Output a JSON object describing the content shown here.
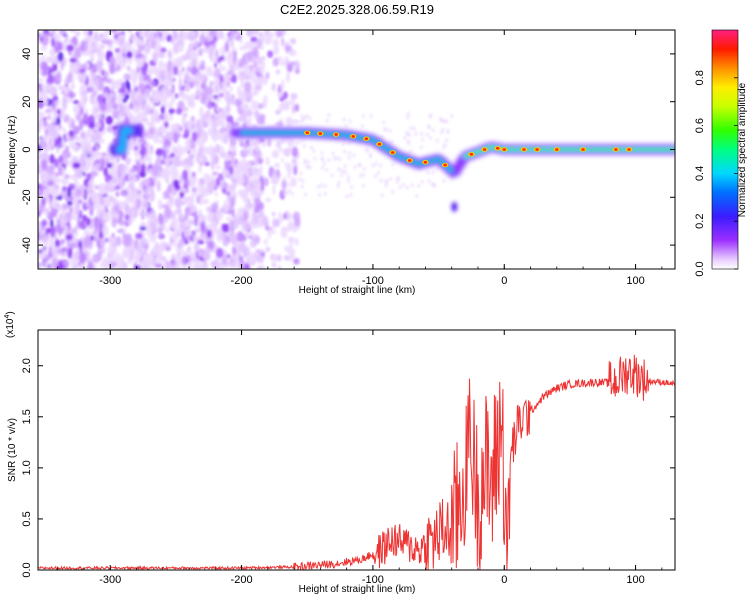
{
  "figure": {
    "title": "C2E2.2025.328.06.59.R19"
  },
  "chart_data": [
    {
      "type": "heatmap",
      "xlabel": "Height of straight line (km)",
      "ylabel": "Frequency (Hz)",
      "xlim": [
        -355,
        130
      ],
      "ylim": [
        -50,
        50
      ],
      "xticks": [
        -300,
        -200,
        -100,
        0,
        100
      ],
      "yticks": [
        -40,
        -20,
        0,
        20,
        40
      ],
      "grid": false,
      "colorbar": {
        "label": "Normalized spectral amplitude",
        "range": [
          0,
          1
        ],
        "ticks": [
          "0.0",
          "0.2",
          "0.4",
          "0.6",
          "0.8"
        ],
        "colormap": "rainbow"
      },
      "features": {
        "noise_region_x": [
          -355,
          -165
        ],
        "signal_track": [
          {
            "x": -290,
            "freq": 8
          },
          {
            "x": -230,
            "freq": 7
          },
          {
            "x": -200,
            "freq": 7
          },
          {
            "x": -150,
            "freq": 7
          },
          {
            "x": -120,
            "freq": 6
          },
          {
            "x": -100,
            "freq": 4
          },
          {
            "x": -80,
            "freq": -3
          },
          {
            "x": -65,
            "freq": -6
          },
          {
            "x": -50,
            "freq": -4
          },
          {
            "x": -38,
            "freq": -10
          },
          {
            "x": -30,
            "freq": -3
          },
          {
            "x": -10,
            "freq": 1
          },
          {
            "x": 0,
            "freq": 0
          },
          {
            "x": 50,
            "freq": 0
          },
          {
            "x": 100,
            "freq": 0
          },
          {
            "x": 130,
            "freq": 0
          }
        ]
      }
    },
    {
      "type": "line",
      "xlabel": "Height of straight line (km)",
      "ylabel": "SNR (10 * v/v)",
      "y_multiplier": "(x10",
      "y_multiplier_exp": "4",
      "y_multiplier_close": ")",
      "xlim": [
        -355,
        130
      ],
      "ylim": [
        0,
        2.35
      ],
      "xticks": [
        -300,
        -200,
        -100,
        0,
        100
      ],
      "yticks": [
        "0.0",
        "0.5",
        "1.0",
        "1.5",
        "2.0"
      ],
      "grid": false,
      "series": [
        {
          "color": "#ee3333",
          "x": [
            -355,
            -300,
            -250,
            -200,
            -160,
            -130,
            -110,
            -95,
            -85,
            -75,
            -65,
            -55,
            -45,
            -40,
            -35,
            -30,
            -27,
            -24,
            -20,
            -15,
            -10,
            -5,
            -2,
            2,
            5,
            8,
            12,
            20,
            30,
            40,
            50,
            60,
            70,
            80,
            85,
            90,
            95,
            100,
            105,
            110,
            120,
            130
          ],
          "y": [
            0.02,
            0.02,
            0.02,
            0.02,
            0.03,
            0.06,
            0.1,
            0.18,
            0.3,
            0.25,
            0.2,
            0.28,
            0.4,
            0.35,
            0.6,
            0.9,
            1.4,
            1.1,
            0.7,
            1.0,
            0.8,
            1.2,
            1.5,
            0.3,
            1.1,
            1.3,
            1.45,
            1.55,
            1.7,
            1.78,
            1.82,
            1.83,
            1.84,
            1.83,
            1.85,
            1.9,
            1.95,
            1.92,
            1.88,
            1.85,
            1.84,
            1.82
          ]
        }
      ]
    }
  ]
}
